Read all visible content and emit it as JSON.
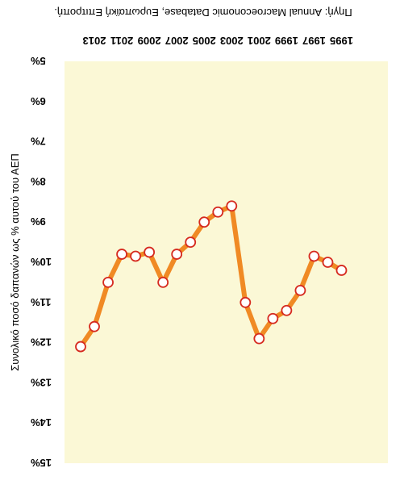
{
  "chart_data": {
    "type": "line",
    "title": "Πηγή: Annual Macroeconomic Database, Ευρωπαϊκή Επιτροπή.",
    "ylabel": "Συνολικό ποσό δαπανών ως % αυτού του ΑΕΠ",
    "xlabel": "",
    "x_tick_labels": [
      "1995",
      "1997",
      "1999",
      "2001",
      "2003",
      "2005",
      "2007",
      "2009",
      "2011",
      "2013"
    ],
    "y_tick_labels": [
      "5%",
      "6%",
      "7%",
      "8%",
      "9%",
      "10%",
      "11%",
      "12%",
      "13%",
      "14%",
      "15%"
    ],
    "y_ticks": [
      5,
      6,
      7,
      8,
      9,
      10,
      11,
      12,
      13,
      14,
      15
    ],
    "ylim": [
      5,
      15
    ],
    "y_inverted": true,
    "grid": false,
    "legend": "none",
    "colors": {
      "plot_bg": "#fbf8d6",
      "line": "#f08a24",
      "marker_fill": "#ffffff",
      "marker_edge": "#d62a1f"
    },
    "series": [
      {
        "x": [
          1995,
          1996,
          1997,
          1998,
          1999,
          2000,
          2001,
          2002,
          2003,
          2004,
          2005,
          2006,
          2007,
          2008,
          2009,
          2010,
          2011,
          2012,
          2013,
          2014
        ],
        "values": [
          10.2,
          10.0,
          9.85,
          10.7,
          11.2,
          11.4,
          11.9,
          11.0,
          8.6,
          8.75,
          9.0,
          9.5,
          9.8,
          10.5,
          9.75,
          9.85,
          9.8,
          10.5,
          11.6,
          12.1
        ]
      }
    ]
  }
}
